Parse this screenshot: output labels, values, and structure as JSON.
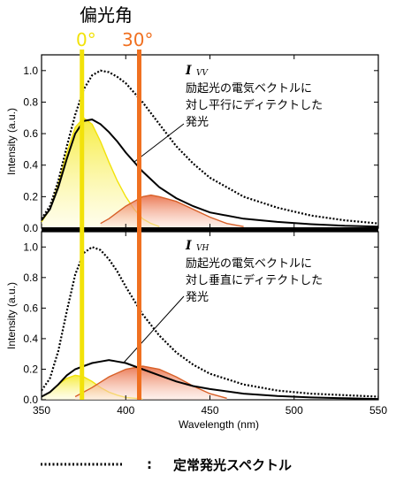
{
  "header": {
    "title": "偏光角",
    "angle_0": "0°",
    "angle_30": "30°"
  },
  "colors": {
    "angle_0": "#f2e20a",
    "angle_30": "#f07020",
    "steady_state": "#000000",
    "measured": "#000000",
    "fill_0": "#f6ec3c",
    "fill_30": "#e86a40"
  },
  "legend": {
    "marker": "dotted-line",
    "separator": ":",
    "text": "定常発光スペクトル"
  },
  "chart_data": [
    {
      "type": "line",
      "panel": "top",
      "ylabel": "Intensity (a.u.)",
      "xlabel": "",
      "xlim": [
        350,
        550
      ],
      "ylim": [
        0,
        1.1
      ],
      "yticks": [
        "0.0",
        "0.2",
        "0.4",
        "0.6",
        "0.8",
        "1.0"
      ],
      "annotation": {
        "symbol": "I",
        "subscript": "VV",
        "lines": [
          "励起光の電気ベクトルに",
          "対し平行にディテクトした",
          "発光"
        ]
      },
      "series": [
        {
          "style": "dotted",
          "x": [
            350,
            355,
            360,
            365,
            370,
            375,
            380,
            385,
            390,
            395,
            400,
            410,
            420,
            430,
            440,
            450,
            470,
            490,
            510,
            530,
            550
          ],
          "y": [
            0.06,
            0.14,
            0.3,
            0.52,
            0.72,
            0.88,
            0.97,
            1.0,
            0.99,
            0.96,
            0.92,
            0.8,
            0.66,
            0.52,
            0.41,
            0.32,
            0.2,
            0.13,
            0.08,
            0.05,
            0.03
          ]
        },
        {
          "style": "solid",
          "x": [
            350,
            355,
            360,
            365,
            370,
            375,
            380,
            385,
            390,
            395,
            400,
            410,
            420,
            430,
            440,
            450,
            470,
            490,
            510,
            530,
            550
          ],
          "y": [
            0.05,
            0.12,
            0.26,
            0.44,
            0.6,
            0.68,
            0.69,
            0.66,
            0.61,
            0.55,
            0.48,
            0.36,
            0.26,
            0.19,
            0.14,
            0.1,
            0.06,
            0.04,
            0.025,
            0.015,
            0.01
          ]
        },
        {
          "style": "fill-0",
          "x": [
            350,
            355,
            360,
            365,
            370,
            375,
            380,
            385,
            390,
            395,
            400,
            405,
            410,
            415,
            420
          ],
          "y": [
            0.04,
            0.12,
            0.28,
            0.48,
            0.64,
            0.7,
            0.66,
            0.55,
            0.42,
            0.3,
            0.2,
            0.12,
            0.06,
            0.03,
            0.01
          ]
        },
        {
          "style": "fill-30",
          "x": [
            385,
            390,
            395,
            400,
            405,
            410,
            415,
            420,
            430,
            440,
            450,
            460,
            470
          ],
          "y": [
            0.03,
            0.06,
            0.1,
            0.14,
            0.17,
            0.2,
            0.21,
            0.2,
            0.17,
            0.12,
            0.07,
            0.03,
            0.01
          ]
        }
      ]
    },
    {
      "type": "line",
      "panel": "bottom",
      "ylabel": "Intensity (a.u.)",
      "xlabel": "Wavelength (nm)",
      "xlim": [
        350,
        550
      ],
      "ylim": [
        0,
        1.1
      ],
      "xticks": [
        "350",
        "400",
        "450",
        "500",
        "550"
      ],
      "yticks": [
        "0.0",
        "0.2",
        "0.4",
        "0.6",
        "0.8",
        "1.0"
      ],
      "annotation": {
        "symbol": "I",
        "subscript": "VH",
        "lines": [
          "励起光の電気ベクトルに",
          "対し垂直にディテクトした",
          "発光"
        ]
      },
      "series": [
        {
          "style": "dotted",
          "x": [
            350,
            355,
            360,
            365,
            370,
            375,
            380,
            385,
            390,
            395,
            400,
            410,
            420,
            430,
            440,
            450,
            470,
            490,
            510,
            530,
            550
          ],
          "y": [
            0.06,
            0.14,
            0.32,
            0.58,
            0.82,
            0.96,
            1.0,
            0.98,
            0.92,
            0.84,
            0.74,
            0.56,
            0.42,
            0.31,
            0.23,
            0.17,
            0.1,
            0.06,
            0.04,
            0.03,
            0.02
          ]
        },
        {
          "style": "solid",
          "x": [
            350,
            355,
            360,
            365,
            370,
            375,
            380,
            385,
            390,
            395,
            400,
            410,
            420,
            430,
            440,
            450,
            470,
            490,
            510,
            530,
            550
          ],
          "y": [
            0.02,
            0.05,
            0.1,
            0.16,
            0.2,
            0.22,
            0.24,
            0.25,
            0.26,
            0.25,
            0.24,
            0.2,
            0.16,
            0.12,
            0.09,
            0.07,
            0.04,
            0.025,
            0.015,
            0.01,
            0.005
          ]
        },
        {
          "style": "fill-0",
          "x": [
            350,
            355,
            360,
            365,
            370,
            375,
            380,
            385,
            390,
            395,
            400,
            410
          ],
          "y": [
            0.02,
            0.05,
            0.1,
            0.14,
            0.16,
            0.15,
            0.12,
            0.08,
            0.05,
            0.03,
            0.015,
            0.005
          ]
        },
        {
          "style": "fill-30",
          "x": [
            370,
            380,
            390,
            400,
            410,
            420,
            430,
            440,
            450,
            460
          ],
          "y": [
            0.02,
            0.08,
            0.15,
            0.2,
            0.22,
            0.2,
            0.15,
            0.09,
            0.04,
            0.01
          ]
        }
      ]
    }
  ]
}
